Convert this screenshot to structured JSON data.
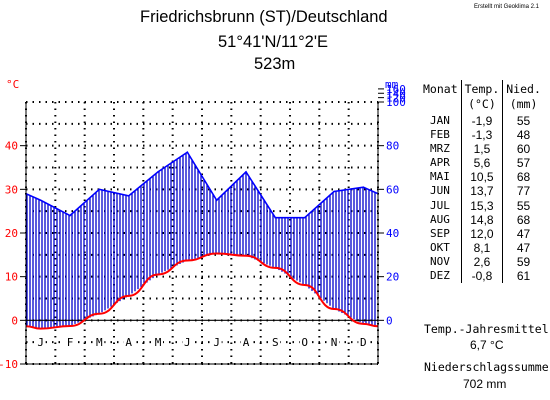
{
  "header": {
    "title_line1": "Friedrichsbrunn (ST)/Deutschland",
    "title_line2": "51°41'N/11°2'E",
    "title_line3": "523m",
    "credit": "Erstellt mit Geoklima 2.1"
  },
  "table": {
    "col_month": "Monat",
    "col_temp_line1": "Temp.",
    "col_temp_line2": "(°C)",
    "col_prec_line1": "Nied.",
    "col_prec_line2": "(mm)",
    "rows": [
      {
        "month": "JAN",
        "temp": "-1,9",
        "prec": "55"
      },
      {
        "month": "FEB",
        "temp": "-1,3",
        "prec": "48"
      },
      {
        "month": "MRZ",
        "temp": "1,5",
        "prec": "60"
      },
      {
        "month": "APR",
        "temp": "5,6",
        "prec": "57"
      },
      {
        "month": "MAI",
        "temp": "10,5",
        "prec": "68"
      },
      {
        "month": "JUN",
        "temp": "13,7",
        "prec": "77"
      },
      {
        "month": "JUL",
        "temp": "15,3",
        "prec": "55"
      },
      {
        "month": "AUG",
        "temp": "14,8",
        "prec": "68"
      },
      {
        "month": "SEP",
        "temp": "12,0",
        "prec": "47"
      },
      {
        "month": "OKT",
        "temp": "8,1",
        "prec": "47"
      },
      {
        "month": "NOV",
        "temp": "2,6",
        "prec": "59"
      },
      {
        "month": "DEZ",
        "temp": "-0,8",
        "prec": "61"
      }
    ]
  },
  "summary": {
    "temp_label": "Temp.-Jahresmittel",
    "temp_value": "6,7 °C",
    "prec_label": "Niederschlagssumme",
    "prec_value": "702 mm"
  },
  "chart_data": {
    "type": "line",
    "categories": [
      "J",
      "F",
      "M",
      "A",
      "M",
      "J",
      "J",
      "A",
      "S",
      "O",
      "N",
      "D"
    ],
    "series": [
      {
        "name": "Temp.",
        "unit": "°C",
        "color": "#ff0000",
        "values": [
          -1.9,
          -1.3,
          1.5,
          5.6,
          10.5,
          13.7,
          15.3,
          14.8,
          12.0,
          8.1,
          2.6,
          -0.8
        ]
      },
      {
        "name": "Nied.",
        "unit": "mm",
        "color": "#0000ff",
        "values": [
          55,
          48,
          60,
          57,
          68,
          77,
          55,
          68,
          47,
          47,
          59,
          61
        ]
      }
    ],
    "left_axis": {
      "label": "°C",
      "ticks": [
        -10,
        0,
        10,
        20,
        30,
        40
      ],
      "range": [
        -10,
        50
      ],
      "color": "#ff0000"
    },
    "right_axis": {
      "label": "mm",
      "ticks": [
        0,
        20,
        40,
        60,
        80,
        100,
        120,
        140,
        160
      ],
      "range": [
        -20,
        160
      ],
      "color": "#0000ff"
    },
    "humid_fill": "vertical blue hatching between precipitation and temperature curves",
    "grid": true
  }
}
